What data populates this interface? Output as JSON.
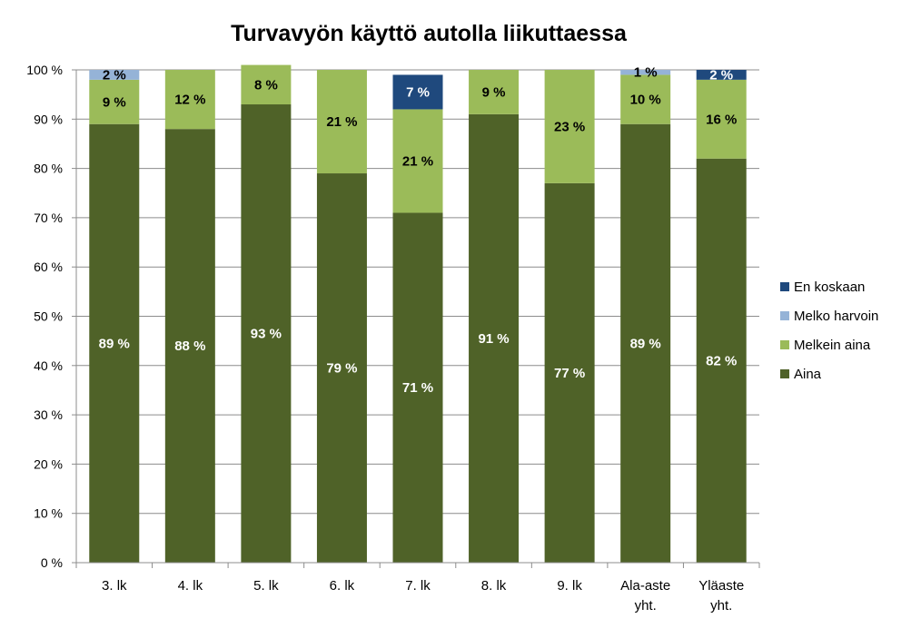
{
  "chart_data": {
    "type": "bar",
    "stacked": true,
    "title": "Turvavyön käyttö autolla liikuttaessa",
    "xlabel": "",
    "ylabel": "",
    "ylim": [
      0,
      100
    ],
    "yticks": [
      "0 %",
      "10 %",
      "20 %",
      "30 %",
      "40 %",
      "50 %",
      "60 %",
      "70 %",
      "80 %",
      "90 %",
      "100 %"
    ],
    "grid": true,
    "legend_position": "right",
    "categories": [
      [
        "3. lk"
      ],
      [
        "4. lk"
      ],
      [
        "5. lk"
      ],
      [
        "6. lk"
      ],
      [
        "7. lk"
      ],
      [
        "8. lk"
      ],
      [
        "9. lk"
      ],
      [
        "Ala-aste",
        "yht."
      ],
      [
        "Yläaste",
        "yht."
      ]
    ],
    "series": [
      {
        "name": "Aina",
        "color": "#4f6228",
        "label_color": "#ffffff",
        "values": [
          89,
          88,
          93,
          79,
          71,
          91,
          77,
          89,
          82
        ],
        "labels": [
          "89 %",
          "88 %",
          "93 %",
          "79 %",
          "71 %",
          "91 %",
          "77 %",
          "89 %",
          "82 %"
        ]
      },
      {
        "name": "Melkein aina",
        "color": "#9bbb59",
        "label_color": "#000000",
        "values": [
          9,
          12,
          8,
          21,
          21,
          9,
          23,
          10,
          16
        ],
        "labels": [
          "9 %",
          "12 %",
          "8 %",
          "21 %",
          "21 %",
          "9 %",
          "23 %",
          "10 %",
          "16 %"
        ]
      },
      {
        "name": "Melko harvoin",
        "color": "#95b3d7",
        "label_color": "#000000",
        "values": [
          2,
          0,
          0,
          0,
          0,
          0,
          0,
          1,
          0
        ],
        "labels": [
          "2 %",
          "",
          "",
          "",
          "",
          "",
          "",
          "1 %",
          ""
        ]
      },
      {
        "name": "En koskaan",
        "color": "#1f497d",
        "label_color": "#ffffff",
        "values": [
          0,
          0,
          0,
          0,
          7,
          0,
          0,
          0,
          2
        ],
        "labels": [
          "",
          "",
          "",
          "",
          "7 %",
          "",
          "",
          "",
          "2 %"
        ]
      }
    ]
  }
}
